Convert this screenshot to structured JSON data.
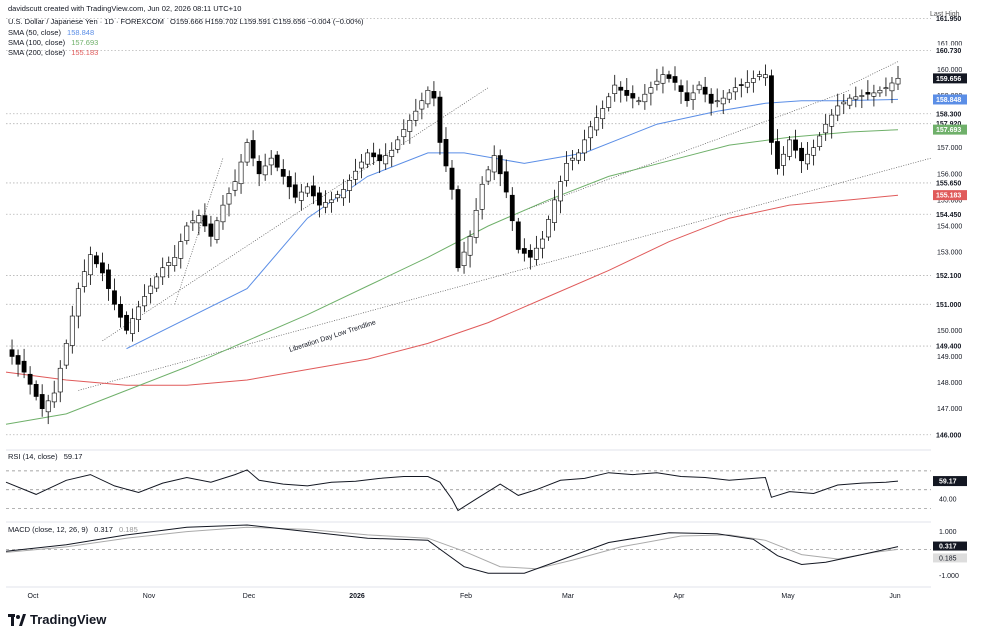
{
  "attribution": "davidscutt created with TradingView.com, Jun 02, 2026 08:11 UTC+10",
  "brand": "TradingView",
  "colors": {
    "up": "#ffffff",
    "down": "#000000",
    "sma50": "#5b8ee6",
    "sma100": "#6fb06a",
    "sma200": "#e05a5a",
    "grid": "#b5b5b5"
  },
  "main": {
    "symbol": "U.S. Dollar / Japanese Yen · 1D · FOREXCOM",
    "ohlc": "O159.666 H159.702 L159.591 C159.656 −0.004 (−0.00%)",
    "sma50_label": "SMA (50, close)",
    "sma50_value": "158.848",
    "sma100_label": "SMA (100, close)",
    "sma100_value": "157.693",
    "sma200_label": "SMA (200, close)",
    "sma200_value": "155.183",
    "trendline_label": "Liberation Day Low Trendline",
    "top_right_note": "Last High"
  },
  "rsi": {
    "label": "RSI (14, close)",
    "value": "59.17"
  },
  "macd": {
    "label": "MACD (close, 12, 26, 9)",
    "value": "0.317",
    "signal": "0.185"
  },
  "chart_data": {
    "type": "candlestick",
    "x_ticks": [
      "Oct",
      "Nov",
      "Dec",
      "2026",
      "Feb",
      "Mar",
      "Apr",
      "May",
      "Jun"
    ],
    "y_ticks": [
      "161.000",
      "160.000",
      "159.000",
      "158.000",
      "157.000",
      "156.000",
      "155.000",
      "154.000",
      "153.000",
      "152.000",
      "151.000",
      "150.000",
      "149.000",
      "148.000",
      "147.000"
    ],
    "ylim": [
      145.8,
      162.2
    ],
    "horizontal_levels": [
      {
        "value": 161.95,
        "label": "161.950"
      },
      {
        "value": 160.73,
        "label": "160.730"
      },
      {
        "value": 158.3,
        "label": "158.300"
      },
      {
        "value": 157.92,
        "label": "157.920"
      },
      {
        "value": 155.65,
        "label": "155.650"
      },
      {
        "value": 154.45,
        "label": "154.450"
      },
      {
        "value": 152.1,
        "label": "152.100"
      },
      {
        "value": 151.0,
        "label": "151.000"
      },
      {
        "value": 149.4,
        "label": "149.400"
      },
      {
        "value": 146.0,
        "label": "146.000"
      }
    ],
    "price_badges": [
      {
        "label": "159.656",
        "value": 159.656,
        "style": "dark"
      },
      {
        "label": "158.848",
        "value": 158.848,
        "style": "sma50"
      },
      {
        "label": "157.693",
        "value": 157.693,
        "style": "sma100"
      },
      {
        "label": "155.183",
        "value": 155.183,
        "style": "sma200"
      }
    ],
    "close_path": [
      [
        0,
        149.3
      ],
      [
        3,
        148.4
      ],
      [
        6,
        147.0
      ],
      [
        8,
        147.6
      ],
      [
        10,
        149.5
      ],
      [
        12,
        151.6
      ],
      [
        14,
        152.9
      ],
      [
        16,
        152.2
      ],
      [
        18,
        151.0
      ],
      [
        20,
        150.0
      ],
      [
        22,
        150.9
      ],
      [
        24,
        151.7
      ],
      [
        26,
        152.4
      ],
      [
        28,
        152.8
      ],
      [
        30,
        154.0
      ],
      [
        32,
        154.4
      ],
      [
        34,
        153.6
      ],
      [
        36,
        154.8
      ],
      [
        38,
        155.7
      ],
      [
        40,
        157.2
      ],
      [
        42,
        156.0
      ],
      [
        44,
        156.6
      ],
      [
        46,
        155.9
      ],
      [
        48,
        155.1
      ],
      [
        50,
        155.5
      ],
      [
        52,
        154.8
      ],
      [
        54,
        155.0
      ],
      [
        56,
        155.4
      ],
      [
        58,
        156.1
      ],
      [
        60,
        156.8
      ],
      [
        62,
        156.5
      ],
      [
        64,
        156.9
      ],
      [
        66,
        157.7
      ],
      [
        68,
        158.4
      ],
      [
        70,
        159.2
      ],
      [
        71,
        158.9
      ],
      [
        72,
        157.2
      ],
      [
        74,
        155.4
      ],
      [
        75,
        152.4
      ],
      [
        77,
        153.6
      ],
      [
        79,
        155.6
      ],
      [
        81,
        156.7
      ],
      [
        83,
        155.3
      ],
      [
        85,
        153.1
      ],
      [
        87,
        152.8
      ],
      [
        89,
        153.5
      ],
      [
        91,
        155.0
      ],
      [
        93,
        156.4
      ],
      [
        95,
        156.8
      ],
      [
        97,
        157.8
      ],
      [
        99,
        158.5
      ],
      [
        101,
        159.4
      ],
      [
        103,
        159.0
      ],
      [
        105,
        158.8
      ],
      [
        107,
        159.3
      ],
      [
        109,
        159.8
      ],
      [
        111,
        159.5
      ],
      [
        113,
        158.8
      ],
      [
        115,
        159.4
      ],
      [
        117,
        158.7
      ],
      [
        119,
        158.9
      ],
      [
        121,
        159.3
      ],
      [
        123,
        159.5
      ],
      [
        125,
        159.8
      ],
      [
        126,
        159.8
      ],
      [
        127,
        157.2
      ],
      [
        128,
        156.2
      ],
      [
        130,
        157.3
      ],
      [
        132,
        156.5
      ],
      [
        134,
        157.0
      ],
      [
        136,
        157.9
      ],
      [
        138,
        158.6
      ],
      [
        140,
        158.9
      ],
      [
        142,
        159.0
      ],
      [
        144,
        159.1
      ],
      [
        146,
        159.3
      ],
      [
        148,
        159.66
      ]
    ],
    "sma50_path": [
      [
        20,
        149.3
      ],
      [
        40,
        151.6
      ],
      [
        50,
        154.3
      ],
      [
        60,
        155.9
      ],
      [
        70,
        156.8
      ],
      [
        76,
        156.8
      ],
      [
        86,
        156.4
      ],
      [
        96,
        156.8
      ],
      [
        108,
        157.9
      ],
      [
        118,
        158.4
      ],
      [
        126,
        158.7
      ],
      [
        132,
        158.8
      ],
      [
        138,
        158.8
      ],
      [
        148,
        158.85
      ]
    ],
    "sma100_path": [
      [
        0,
        146.4
      ],
      [
        10,
        146.8
      ],
      [
        20,
        147.7
      ],
      [
        30,
        148.6
      ],
      [
        40,
        149.6
      ],
      [
        50,
        150.6
      ],
      [
        60,
        151.7
      ],
      [
        70,
        152.8
      ],
      [
        80,
        154.0
      ],
      [
        90,
        155.0
      ],
      [
        100,
        155.9
      ],
      [
        110,
        156.5
      ],
      [
        120,
        157.1
      ],
      [
        130,
        157.4
      ],
      [
        140,
        157.6
      ],
      [
        148,
        157.69
      ]
    ],
    "sma200_path": [
      [
        0,
        148.4
      ],
      [
        10,
        148.1
      ],
      [
        20,
        147.9
      ],
      [
        30,
        147.9
      ],
      [
        40,
        148.1
      ],
      [
        50,
        148.5
      ],
      [
        60,
        148.9
      ],
      [
        70,
        149.5
      ],
      [
        80,
        150.3
      ],
      [
        90,
        151.3
      ],
      [
        100,
        152.3
      ],
      [
        110,
        153.4
      ],
      [
        120,
        154.3
      ],
      [
        130,
        154.8
      ],
      [
        140,
        155.0
      ],
      [
        148,
        155.18
      ]
    ],
    "rsi_data": {
      "ylim": [
        20,
        90
      ],
      "upper": 70,
      "lower": 30,
      "mid": 50,
      "tick_labels": [
        "59.17",
        "40.00"
      ],
      "path": [
        [
          0,
          58
        ],
        [
          5,
          45
        ],
        [
          10,
          60
        ],
        [
          14,
          66
        ],
        [
          18,
          54
        ],
        [
          22,
          47
        ],
        [
          26,
          57
        ],
        [
          30,
          63
        ],
        [
          34,
          58
        ],
        [
          38,
          66
        ],
        [
          40,
          71
        ],
        [
          42,
          60
        ],
        [
          46,
          56
        ],
        [
          50,
          54
        ],
        [
          54,
          58
        ],
        [
          58,
          59
        ],
        [
          62,
          62
        ],
        [
          66,
          64
        ],
        [
          70,
          64
        ],
        [
          72,
          58
        ],
        [
          74,
          40
        ],
        [
          75,
          28
        ],
        [
          78,
          40
        ],
        [
          82,
          56
        ],
        [
          85,
          44
        ],
        [
          88,
          50
        ],
        [
          92,
          60
        ],
        [
          96,
          62
        ],
        [
          100,
          68
        ],
        [
          104,
          66
        ],
        [
          108,
          68
        ],
        [
          112,
          64
        ],
        [
          116,
          63
        ],
        [
          120,
          60
        ],
        [
          124,
          62
        ],
        [
          126,
          63
        ],
        [
          127,
          42
        ],
        [
          130,
          48
        ],
        [
          134,
          46
        ],
        [
          138,
          55
        ],
        [
          142,
          57
        ],
        [
          146,
          58
        ],
        [
          148,
          59.17
        ]
      ]
    },
    "macd_data": {
      "ylim": [
        -1.3,
        1.3
      ],
      "zero": 0,
      "tick_labels": [
        "1.000",
        "0.317",
        "0.185",
        "-1.000"
      ],
      "macd_path": [
        [
          0,
          0.1
        ],
        [
          10,
          0.4
        ],
        [
          20,
          0.85
        ],
        [
          30,
          1.2
        ],
        [
          40,
          1.3
        ],
        [
          50,
          1.0
        ],
        [
          60,
          0.7
        ],
        [
          70,
          0.6
        ],
        [
          72,
          0.2
        ],
        [
          76,
          -0.6
        ],
        [
          80,
          -0.9
        ],
        [
          86,
          -0.9
        ],
        [
          92,
          -0.3
        ],
        [
          100,
          0.5
        ],
        [
          110,
          0.95
        ],
        [
          118,
          0.9
        ],
        [
          124,
          0.65
        ],
        [
          128,
          -0.1
        ],
        [
          132,
          -0.5
        ],
        [
          136,
          -0.4
        ],
        [
          142,
          -0.05
        ],
        [
          148,
          0.317
        ]
      ],
      "signal_path": [
        [
          0,
          0.05
        ],
        [
          10,
          0.3
        ],
        [
          20,
          0.7
        ],
        [
          30,
          1.0
        ],
        [
          40,
          1.2
        ],
        [
          50,
          1.1
        ],
        [
          60,
          0.85
        ],
        [
          70,
          0.7
        ],
        [
          76,
          0.1
        ],
        [
          82,
          -0.6
        ],
        [
          88,
          -0.7
        ],
        [
          94,
          -0.3
        ],
        [
          102,
          0.3
        ],
        [
          112,
          0.8
        ],
        [
          120,
          0.85
        ],
        [
          126,
          0.6
        ],
        [
          132,
          -0.05
        ],
        [
          138,
          -0.25
        ],
        [
          144,
          0.05
        ],
        [
          148,
          0.185
        ]
      ]
    }
  }
}
